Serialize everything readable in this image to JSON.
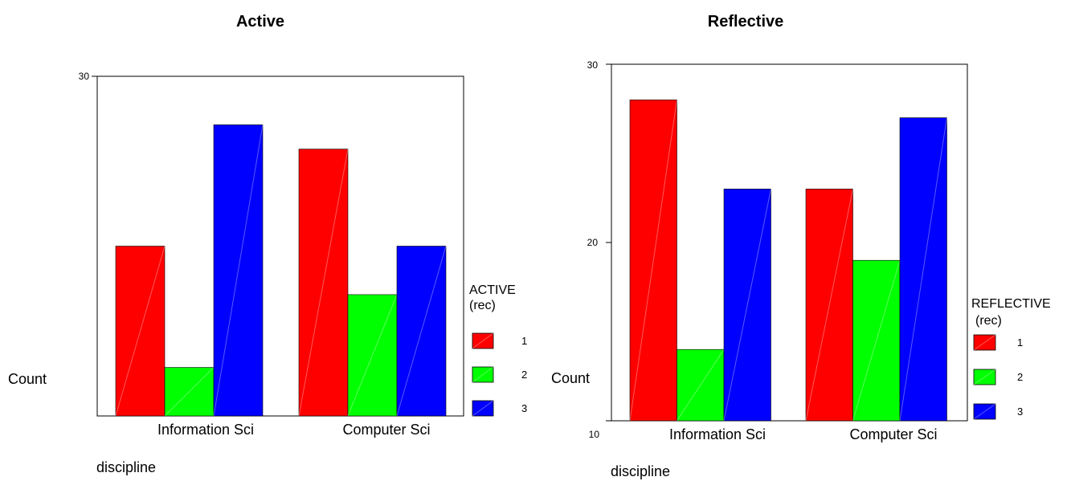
{
  "chart_data": [
    {
      "type": "bar",
      "title": "Active",
      "categories": [
        "Information Sci",
        "Computer Sci"
      ],
      "series": [
        {
          "name": "1",
          "values": [
            23,
            27
          ]
        },
        {
          "name": "2",
          "values": [
            18,
            21
          ]
        },
        {
          "name": "3",
          "values": [
            28,
            23
          ]
        }
      ],
      "xlabel": "discipline",
      "ylabel": "Count",
      "ylim": [
        16,
        30
      ],
      "yticks": [
        "30"
      ],
      "legend": {
        "title_line1": "ACTIVE",
        "title_line2": "(rec)",
        "position": "right"
      },
      "colors": [
        "#ff0000",
        "#00ff00",
        "#0000ff"
      ]
    },
    {
      "type": "bar",
      "title": "Reflective",
      "categories": [
        "Information Sci",
        "Computer Sci"
      ],
      "series": [
        {
          "name": "1",
          "values": [
            28,
            23
          ]
        },
        {
          "name": "2",
          "values": [
            14,
            19
          ]
        },
        {
          "name": "3",
          "values": [
            23,
            27
          ]
        }
      ],
      "xlabel": "discipline",
      "ylabel": "Count",
      "ylim": [
        10,
        30
      ],
      "yticks": [
        "30",
        "20",
        "10"
      ],
      "legend": {
        "title_line1": "REFLECTIVE",
        "title_line2": "(rec)",
        "position": "right"
      },
      "colors": [
        "#ff0000",
        "#00ff00",
        "#0000ff"
      ]
    }
  ]
}
